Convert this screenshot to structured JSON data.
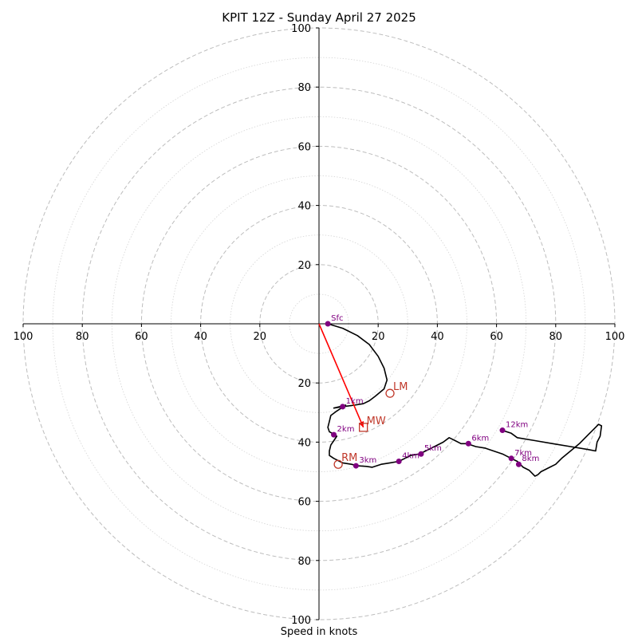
{
  "chart_data": {
    "type": "hodograph",
    "title": "KPIT 12Z - Sunday April 27 2025",
    "xlabel": "Speed in knots",
    "axis_range": [
      -100,
      100
    ],
    "major_ring_step": 20,
    "minor_ring_step": 10,
    "tick_labels": [
      "100",
      "80",
      "60",
      "40",
      "20",
      "20",
      "40",
      "60",
      "80",
      "100"
    ],
    "x_tick_values": [
      -100,
      -80,
      -60,
      -40,
      -20,
      20,
      40,
      60,
      80,
      100
    ],
    "y_tick_values": [
      100,
      80,
      60,
      40,
      20,
      -20,
      -40,
      -60,
      -80,
      -100
    ],
    "grid": true,
    "colors": {
      "trace": "#000000",
      "height_marker": "#800080",
      "motion": "#c0392b",
      "shear_vector": "#ff0000",
      "ring_major": "#bdbdbd",
      "ring_minor": "#d4d4d4"
    },
    "trace": [
      [
        3,
        0
      ],
      [
        8,
        -1.5
      ],
      [
        13,
        -4
      ],
      [
        17,
        -7
      ],
      [
        20,
        -11
      ],
      [
        22,
        -15
      ],
      [
        23,
        -19
      ],
      [
        22,
        -22
      ],
      [
        19,
        -24.5
      ],
      [
        17,
        -26
      ],
      [
        15,
        -27
      ],
      [
        12,
        -27.5
      ],
      [
        8,
        -28
      ],
      [
        5,
        -28.5
      ],
      [
        7,
        -28
      ],
      [
        9,
        -27.5
      ],
      [
        6,
        -29.5
      ],
      [
        4,
        -31
      ],
      [
        3.5,
        -33
      ],
      [
        3,
        -35
      ],
      [
        3.5,
        -36.5
      ],
      [
        4.5,
        -37
      ],
      [
        5,
        -37.5
      ],
      [
        6,
        -38
      ],
      [
        5,
        -39.5
      ],
      [
        4,
        -41
      ],
      [
        3.5,
        -43
      ],
      [
        3.5,
        -44.5
      ],
      [
        5,
        -45.5
      ],
      [
        8,
        -47
      ],
      [
        11,
        -47.5
      ],
      [
        13,
        -48
      ],
      [
        16,
        -48.2
      ],
      [
        18,
        -48.5
      ],
      [
        21,
        -47.5
      ],
      [
        24,
        -47
      ],
      [
        27,
        -46.5
      ],
      [
        29,
        -45.5
      ],
      [
        31,
        -44.5
      ],
      [
        34,
        -44
      ],
      [
        36,
        -43
      ],
      [
        38,
        -42
      ],
      [
        40,
        -41
      ],
      [
        42,
        -40
      ],
      [
        44,
        -38.5
      ],
      [
        46,
        -39.5
      ],
      [
        48,
        -40.5
      ],
      [
        50,
        -40.5
      ],
      [
        53,
        -41.5
      ],
      [
        56,
        -42
      ],
      [
        59,
        -43
      ],
      [
        62,
        -44
      ],
      [
        65,
        -45.5
      ],
      [
        67,
        -46.5
      ],
      [
        68,
        -47.5
      ],
      [
        69,
        -48.5
      ],
      [
        71,
        -49.5
      ],
      [
        73,
        -51.5
      ],
      [
        74,
        -51
      ],
      [
        75,
        -50
      ],
      [
        78,
        -48.5
      ],
      [
        80,
        -47.5
      ],
      [
        82,
        -45.5
      ],
      [
        85,
        -43
      ],
      [
        88,
        -40.5
      ],
      [
        91,
        -37.5
      ],
      [
        93,
        -35.5
      ],
      [
        94.5,
        -34
      ],
      [
        95.5,
        -34.5
      ],
      [
        95,
        -38
      ],
      [
        94,
        -40
      ],
      [
        93.5,
        -43
      ],
      [
        91,
        -42.5
      ],
      [
        85,
        -41.5
      ],
      [
        79,
        -40.5
      ],
      [
        73,
        -39.5
      ],
      [
        67,
        -38.5
      ],
      [
        65,
        -37
      ],
      [
        62,
        -36
      ]
    ],
    "height_markers": [
      {
        "label": "Sfc",
        "u": 3,
        "v": 0
      },
      {
        "label": "1km",
        "u": 8,
        "v": -28
      },
      {
        "label": "2km",
        "u": 5,
        "v": -37.5
      },
      {
        "label": "3km",
        "u": 12.5,
        "v": -48
      },
      {
        "label": "4km",
        "u": 27,
        "v": -46.5
      },
      {
        "label": "5km",
        "u": 34.5,
        "v": -44
      },
      {
        "label": "6km",
        "u": 50.5,
        "v": -40.5
      },
      {
        "label": "7km",
        "u": 65,
        "v": -45.5
      },
      {
        "label": "8km",
        "u": 67.5,
        "v": -47.5
      },
      {
        "label": "12km",
        "u": 62,
        "v": -36
      }
    ],
    "storm_motion": [
      {
        "label": "LM",
        "u": 24,
        "v": -23.5,
        "shape": "circle"
      },
      {
        "label": "MW",
        "u": 15,
        "v": -35,
        "shape": "square"
      },
      {
        "label": "RM",
        "u": 6.5,
        "v": -47.5,
        "shape": "circle"
      }
    ],
    "shear_vector": {
      "from": [
        0,
        0
      ],
      "to": [
        15,
        -35
      ]
    }
  }
}
